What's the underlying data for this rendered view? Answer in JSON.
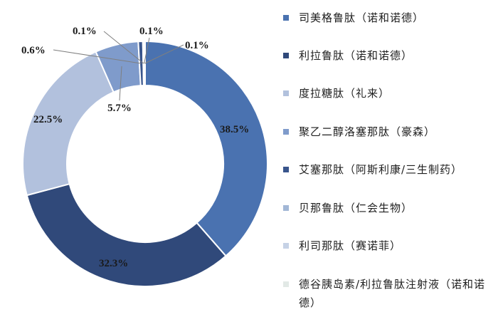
{
  "chart_data": {
    "type": "pie",
    "donut": true,
    "legend_position": "right",
    "slices": [
      {
        "label": "司美格鲁肽（诺和诺德）",
        "value": 38.5,
        "display": "38.5%",
        "color": "#4a72b0"
      },
      {
        "label": "利拉鲁肽（诺和诺德）",
        "value": 32.3,
        "display": "32.3%",
        "color": "#30497a"
      },
      {
        "label": "度拉糖肽（礼来）",
        "value": 22.5,
        "display": "22.5%",
        "color": "#b2c1dd"
      },
      {
        "label": "聚乙二醇洛塞那肽（豪森）",
        "value": 5.7,
        "display": "5.7%",
        "color": "#7f9bcb"
      },
      {
        "label": "艾塞那肽（阿斯利康/三生制药）",
        "value": 0.6,
        "display": "0.6%",
        "color": "#39558c"
      },
      {
        "label": "贝那鲁肽（仁会生物）",
        "value": 0.1,
        "display": "0.1%",
        "color": "#a2b7d6"
      },
      {
        "label": "利司那肽（赛诺菲）",
        "value": 0.1,
        "display": "0.1%",
        "color": "#c6d2e6"
      },
      {
        "label": "德谷胰岛素/利拉鲁肽注射液（诺和诺德）",
        "value": 0.1,
        "display": "0.1%",
        "color": "#e2e9e6"
      }
    ]
  }
}
